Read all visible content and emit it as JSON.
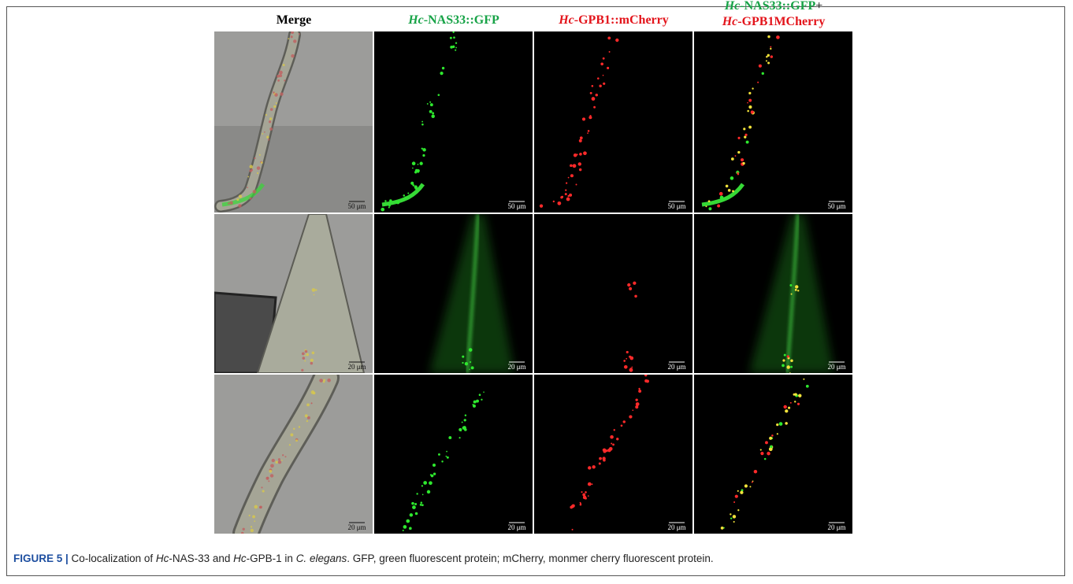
{
  "headers": {
    "merge": "Merge",
    "gfp": {
      "italic": "Hc",
      "text": "-NAS33::GFP"
    },
    "mcherry": {
      "italic": "Hc",
      "text": "-GPB1::mCherry"
    },
    "combined": {
      "line1": {
        "italic": "Hc",
        "text": "-NAS33::GFP",
        "plus": "+"
      },
      "line2": {
        "italic": "Hc",
        "text": "-GPB1MCherry"
      }
    }
  },
  "rows": [
    {
      "scale_bar": "50 μm"
    },
    {
      "scale_bar": "20 μm"
    },
    {
      "scale_bar": "20 μm"
    }
  ],
  "caption": {
    "label": "FIGURE 5 |",
    "parts": [
      " Co-localization of ",
      "Hc",
      "-NAS-33 and ",
      "Hc",
      "-GPB-1 in ",
      "C. elegans",
      ". GFP, green fluorescent protein; mCherry, monmer cherry fluorescent protein."
    ]
  }
}
